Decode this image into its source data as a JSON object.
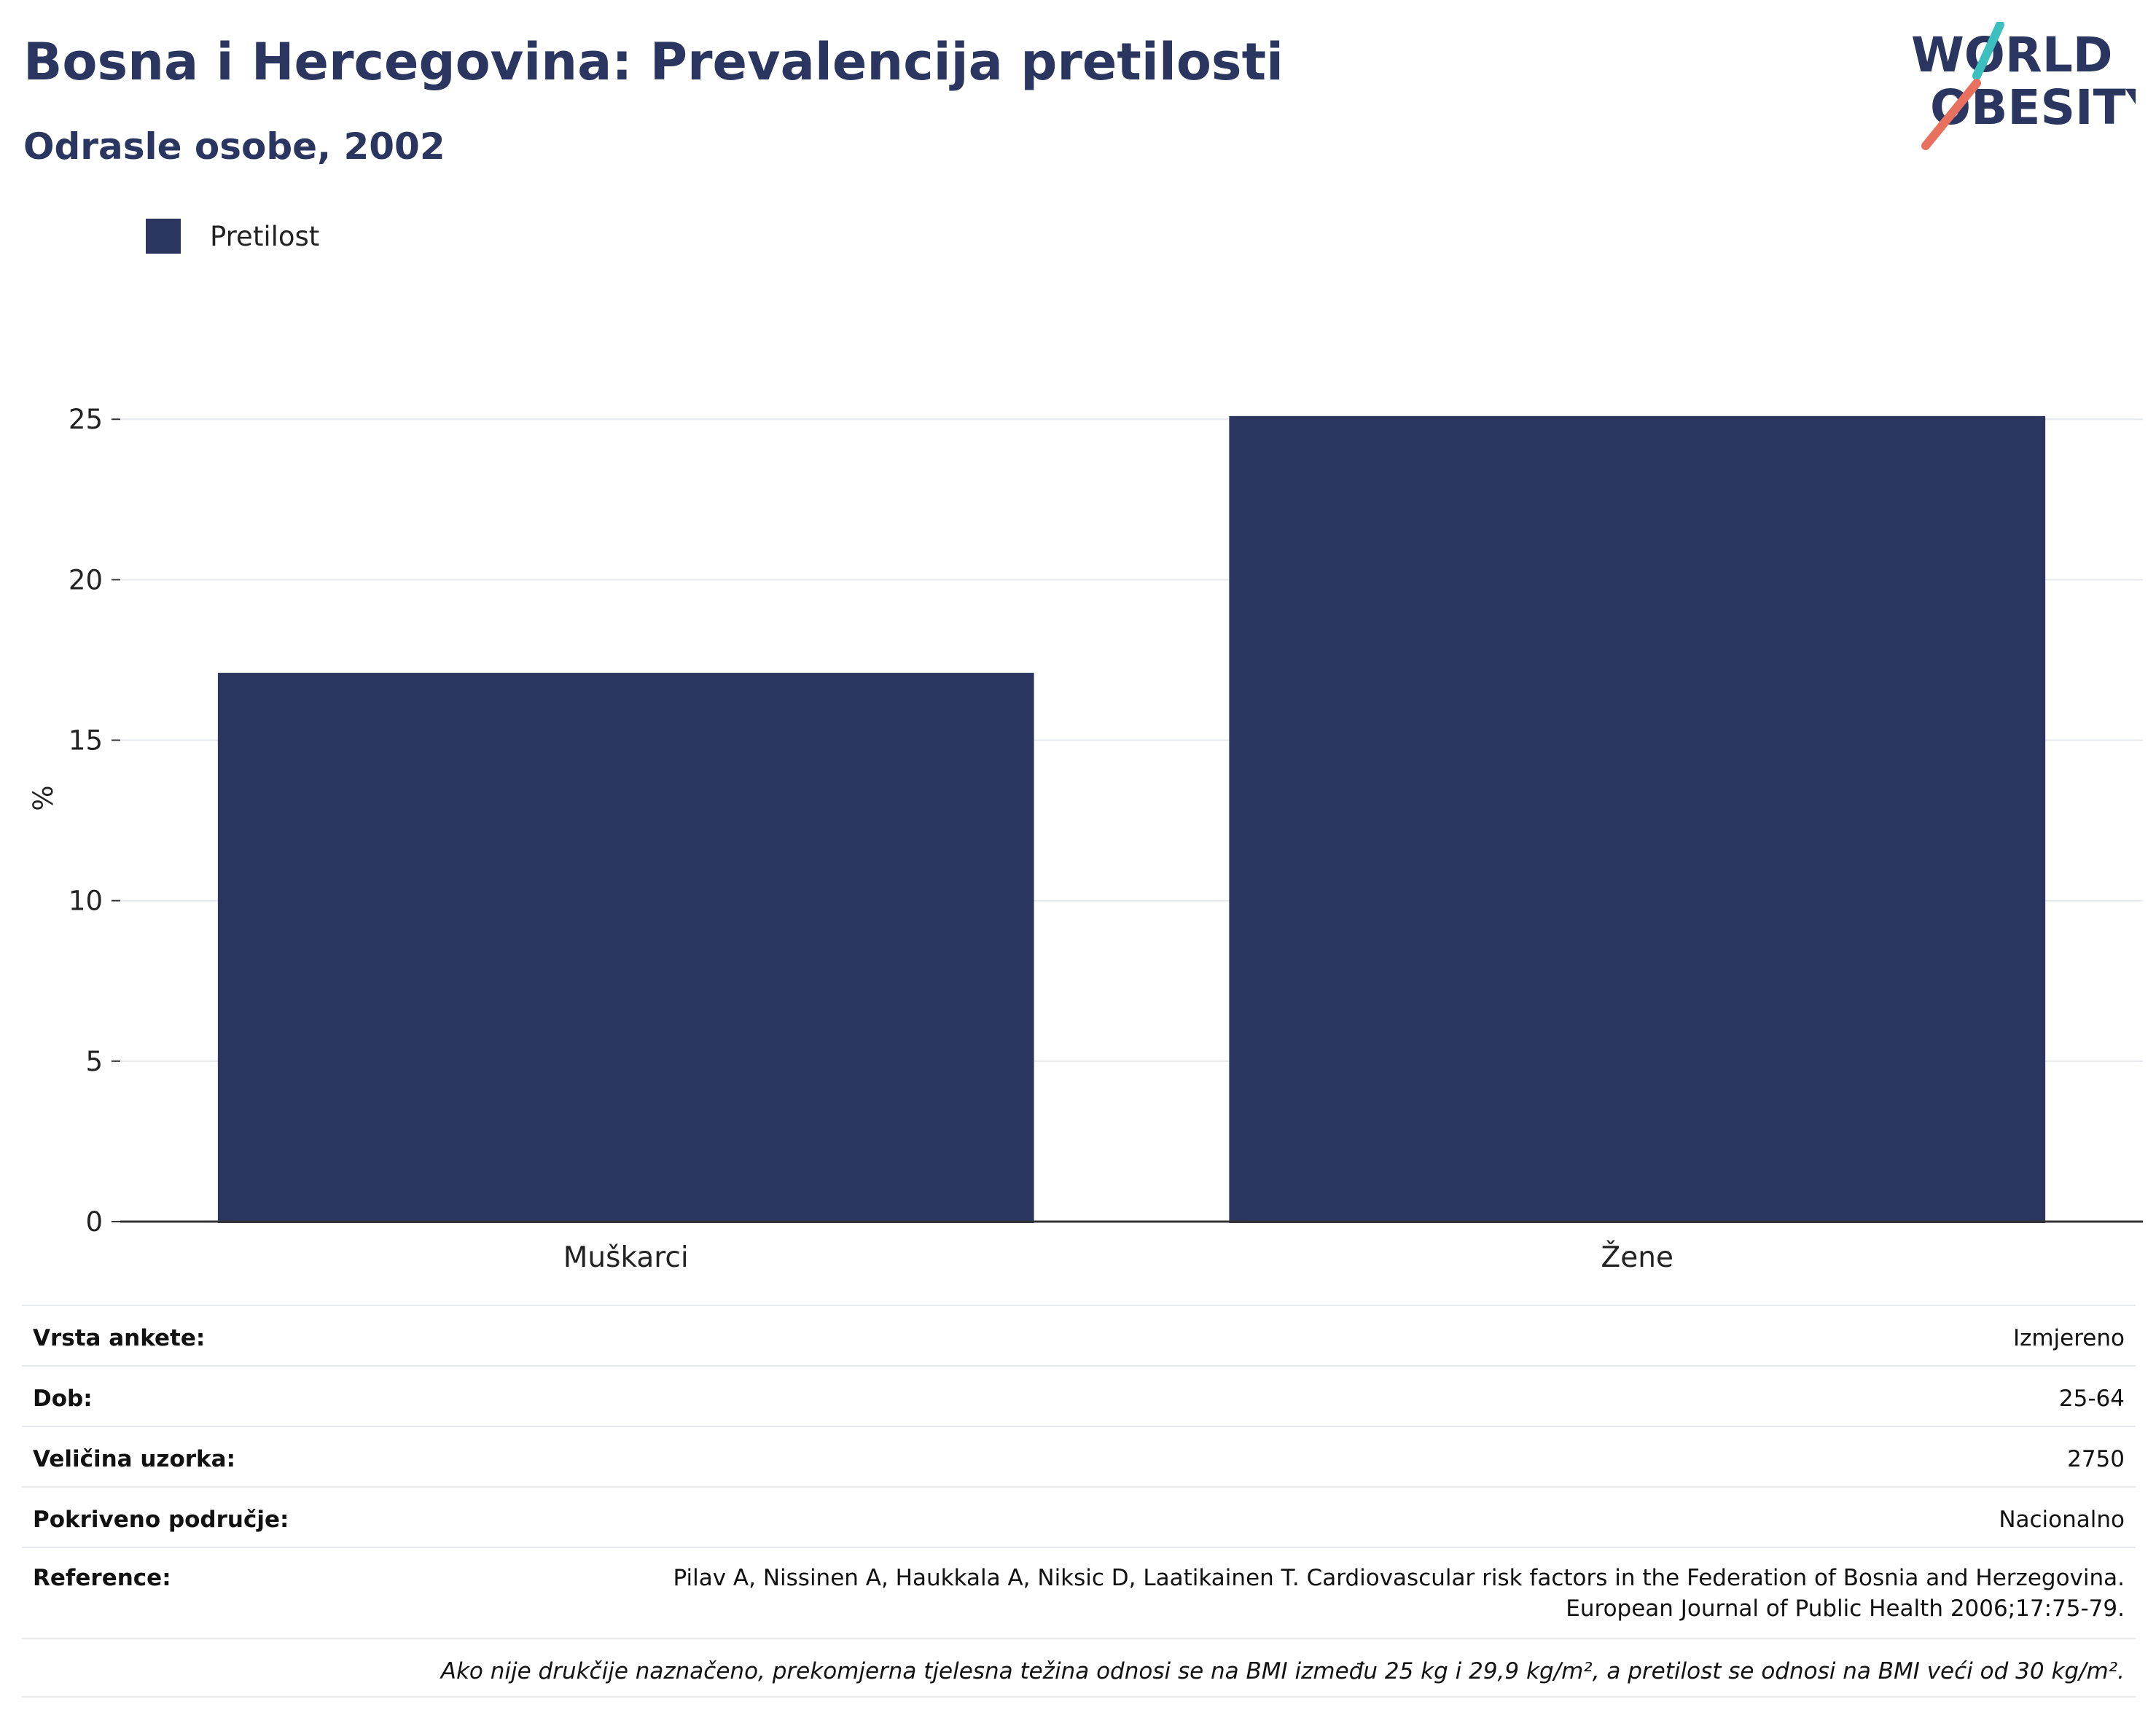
{
  "header": {
    "title": "Bosna i Hercegovina: Prevalencija pretilosti",
    "subtitle": "Odrasle osobe, 2002"
  },
  "logo": {
    "line1": "WORLD",
    "line2": "OBESITY",
    "colors": {
      "text": "#2a3660",
      "slash_top": "#3bbfbf",
      "slash_bottom": "#e8705f"
    }
  },
  "chart_data": {
    "type": "bar",
    "title": "Bosna i Hercegovina: Prevalencija pretilosti",
    "subtitle": "Odrasle osobe, 2002",
    "categories": [
      "Muškarci",
      "Žene"
    ],
    "series": [
      {
        "name": "Pretilost",
        "values": [
          17.1,
          25.1
        ],
        "color": "#2a3660"
      }
    ],
    "xlabel": "",
    "ylabel": "%",
    "ylim": [
      0,
      25.8
    ],
    "yticks": [
      0,
      5,
      10,
      15,
      20,
      25
    ],
    "grid": true,
    "legend": "top-left"
  },
  "meta": {
    "rows": [
      {
        "key": "Vrsta ankete:",
        "value": "Izmjereno"
      },
      {
        "key": "Dob:",
        "value": "25-64"
      },
      {
        "key": "Veličina uzorka:",
        "value": "2750"
      },
      {
        "key": "Pokriveno područje:",
        "value": "Nacionalno"
      }
    ],
    "reference": {
      "key": "Reference:",
      "line1": "Pilav A, Nissinen A, Haukkala A, Niksic D, Laatikainen T. Cardiovascular risk factors in the Federation of Bosnia and Herzegovina.",
      "line2": "European Journal of Public Health 2006;17:75-79."
    },
    "note": "Ako nije drukčije naznačeno, prekomjerna tjelesna težina odnosi se na BMI između 25 kg i 29,9 kg/m², a pretilost se odnosi na BMI veći od 30 kg/m²."
  }
}
